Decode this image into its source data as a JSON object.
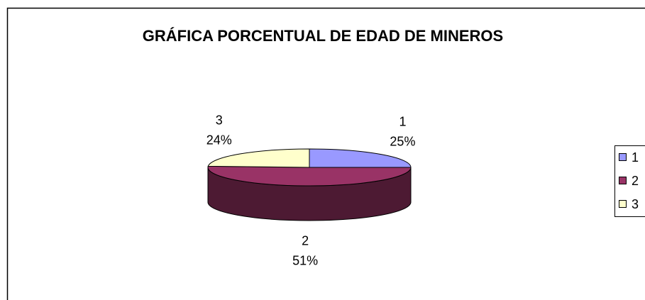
{
  "chart_data": {
    "type": "pie",
    "title": "GRÁFICA PORCENTUAL DE EDAD DE MINEROS",
    "categories": [
      "1",
      "2",
      "3"
    ],
    "values": [
      25,
      51,
      24
    ],
    "value_labels": [
      "25%",
      "51%",
      "24%"
    ],
    "colors": [
      "#9999ff",
      "#993366",
      "#ffffcc"
    ],
    "legend": "right"
  }
}
